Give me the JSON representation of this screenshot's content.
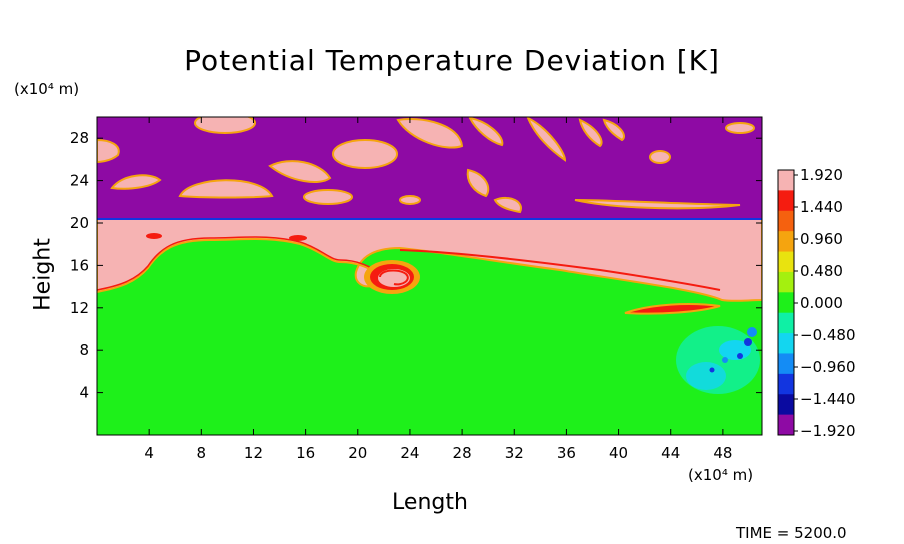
{
  "chart_data": {
    "type": "heatmap",
    "title": "Potential Temperature Deviation [K]",
    "xlabel": "Length",
    "ylabel": "Height",
    "x_unit": "(x10⁴ m)",
    "y_unit": "(x10⁴ m)",
    "xlim": [
      0,
      51
    ],
    "ylim": [
      0,
      30
    ],
    "x_ticks": [
      4,
      8,
      12,
      16,
      20,
      24,
      28,
      32,
      36,
      40,
      44,
      48
    ],
    "y_ticks": [
      4,
      8,
      12,
      16,
      20,
      24,
      28
    ],
    "colorbar": {
      "ticks": [
        "1.920",
        "1.440",
        "0.960",
        "0.480",
        "0.000",
        "−0.480",
        "−0.960",
        "−1.440",
        "−1.920"
      ],
      "range": [
        -1.92,
        1.92
      ],
      "colors": [
        "#f6b3b3",
        "#f51c10",
        "#f5610f",
        "#f5a40f",
        "#e9e30f",
        "#a4f00f",
        "#1ef01a",
        "#0ff0a5",
        "#13d6f0",
        "#148cf5",
        "#1235e0",
        "#0a0aa0",
        "#8e0aa4"
      ]
    },
    "regions": {
      "upper_layer_value": -1.92,
      "inversion_layer_value": 1.92,
      "lower_layer_value": 0.0,
      "inversion_top_height": 20.4
    },
    "time_label": "TIME = 5200.0"
  }
}
